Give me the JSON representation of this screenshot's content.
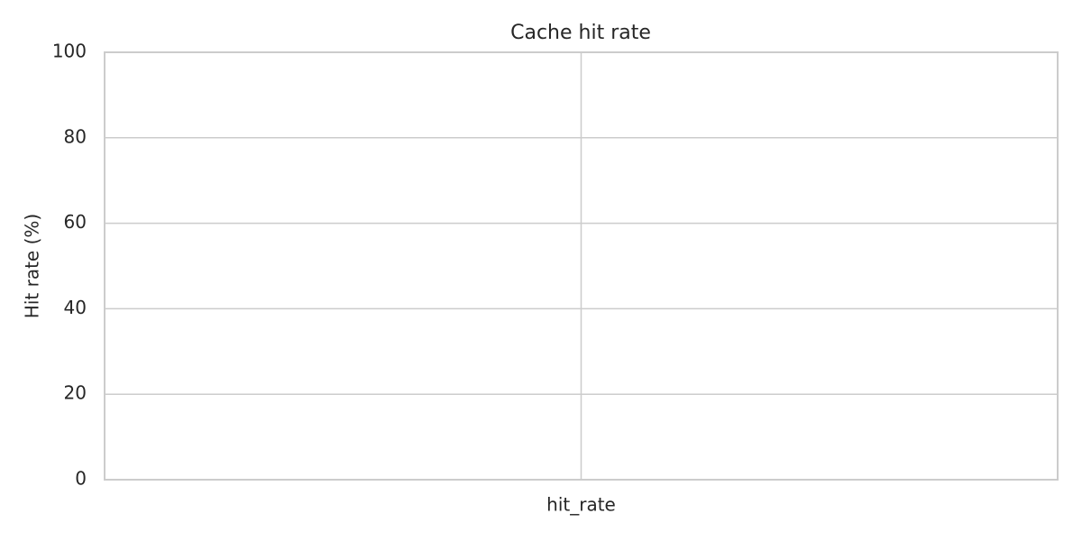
{
  "chart_data": {
    "type": "bar",
    "title": "Cache hit rate",
    "ylabel": "Hit rate (%)",
    "categories": [
      "hit_rate"
    ],
    "values": [
      null
    ],
    "color": "#4c72b0",
    "ylim": [
      0,
      100
    ],
    "yticks": [
      0,
      20,
      40,
      60,
      80,
      100
    ],
    "grid": true
  }
}
